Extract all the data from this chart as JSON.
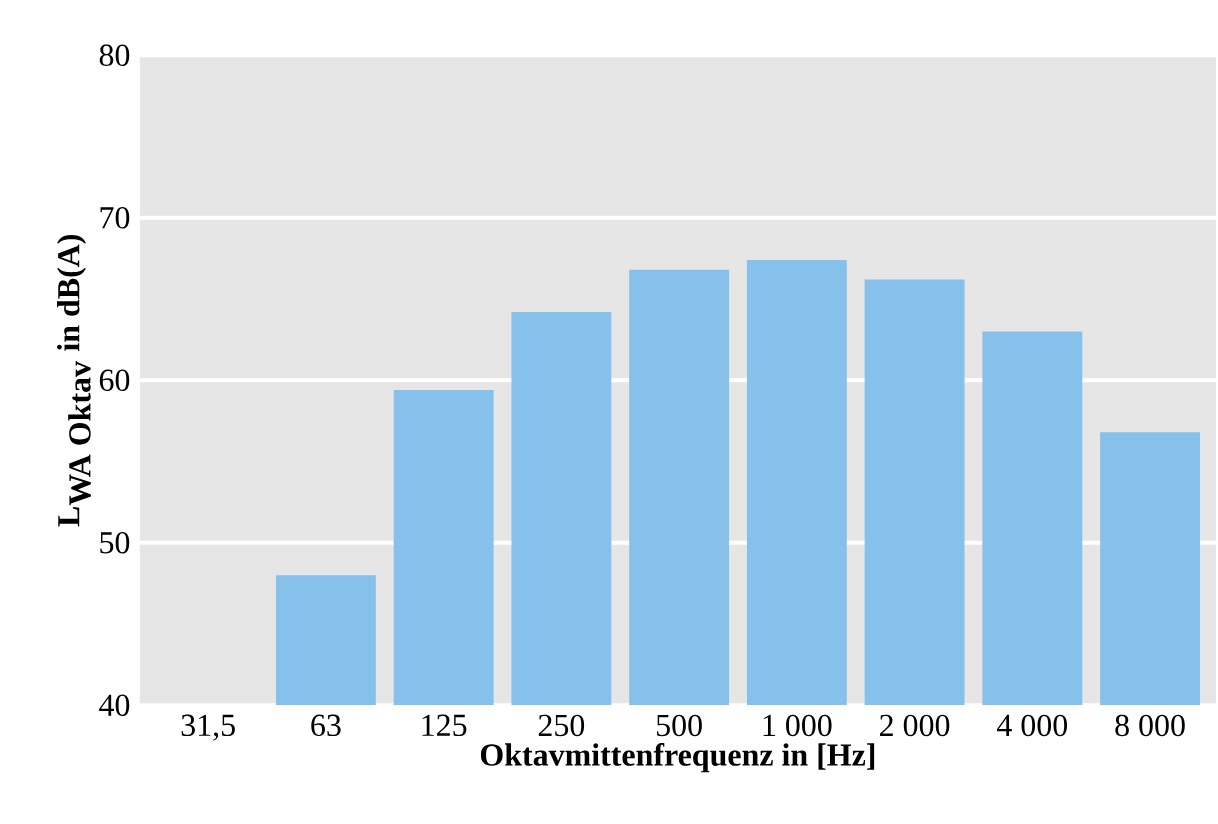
{
  "chart_data": {
    "type": "bar",
    "xlabel": "Oktavmittenfrequenz in [Hz]",
    "ylabel": "\\textbf{L}_{\\textbf{WA Oktav}}\\textbf{ in dB(A)}",
    "categories": [
      "31,5",
      "63",
      "125",
      "250",
      "500",
      "1 000",
      "2 000",
      "4 000",
      "8 000"
    ],
    "values": [
      null,
      48.0,
      59.4,
      64.2,
      66.8,
      67.4,
      66.2,
      63.0,
      56.8
    ],
    "color": "#85c1ea",
    "ylim": [
      40,
      80
    ],
    "yticks": [
      40,
      50,
      60,
      70,
      80
    ],
    "grid": "y"
  }
}
